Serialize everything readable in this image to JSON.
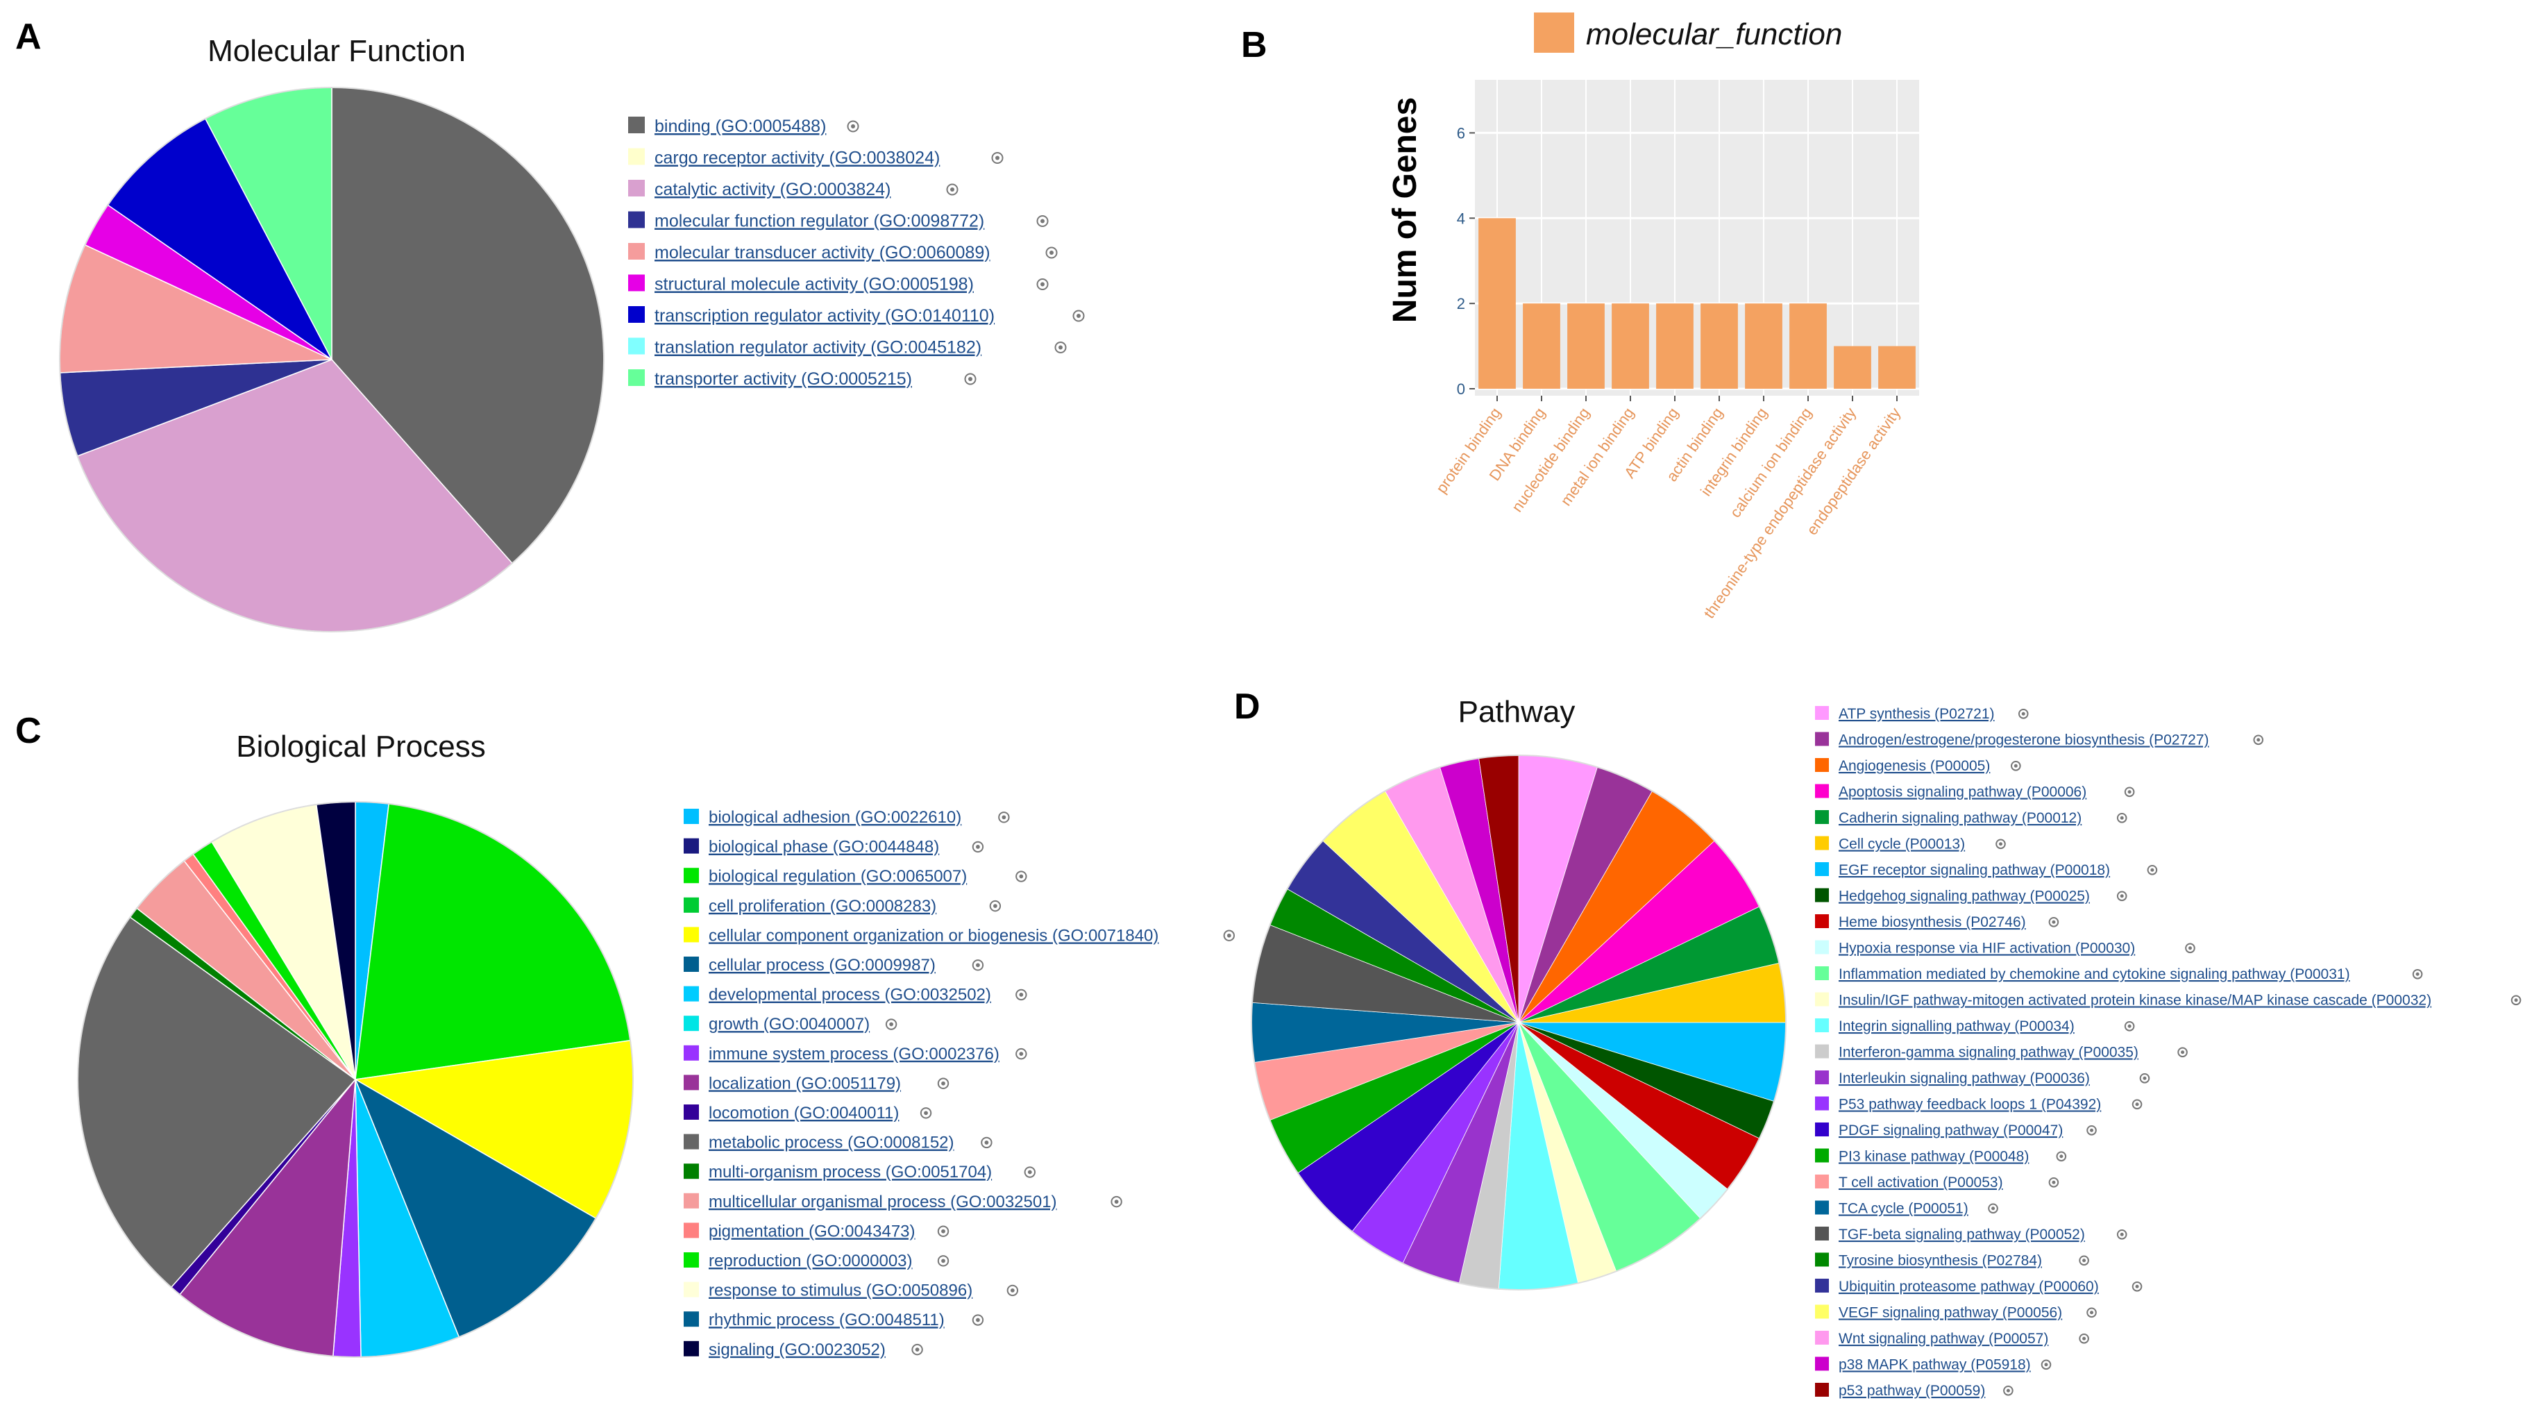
{
  "panels": {
    "a_letter": "A",
    "b_letter": "B",
    "c_letter": "C",
    "d_letter": "D"
  },
  "chart_data": [
    {
      "id": "A",
      "type": "pie",
      "title": "Molecular Function",
      "slices": [
        {
          "label": "binding (GO:0005488)",
          "value": 10,
          "color": "#666666"
        },
        {
          "label": "cargo receptor activity (GO:0038024)",
          "value": 0,
          "color": "#ffffcc"
        },
        {
          "label": "catalytic activity (GO:0003824)",
          "value": 8,
          "color": "#d9a0cf"
        },
        {
          "label": "molecular function regulator (GO:0098772)",
          "value": 1.3,
          "color": "#2e3192"
        },
        {
          "label": "molecular transducer activity (GO:0060089)",
          "value": 2,
          "color": "#f59c9c"
        },
        {
          "label": "structural molecule activity (GO:0005198)",
          "value": 0.7,
          "color": "#e600e6"
        },
        {
          "label": "transcription regulator activity (GO:0140110)",
          "value": 2,
          "color": "#0000cc"
        },
        {
          "label": "translation regulator activity (GO:0045182)",
          "value": 0,
          "color": "#80ffff"
        },
        {
          "label": "transporter activity (GO:0005215)",
          "value": 2,
          "color": "#66ff99"
        }
      ]
    },
    {
      "id": "B",
      "type": "bar",
      "legend": "molecular_function",
      "ylabel": "Num of Genes",
      "xlabel": "",
      "ylim": [
        0,
        7
      ],
      "yticks": [
        0,
        2,
        4,
        6
      ],
      "color": "#f4a261",
      "categories": [
        "protein binding",
        "DNA binding",
        "nucleotide binding",
        "metal ion binding",
        "ATP binding",
        "actin binding",
        "integrin binding",
        "calcium ion binding",
        "threonine-type endopeptidase activity",
        "endopeptidase activity"
      ],
      "values": [
        4,
        2,
        2,
        2,
        2,
        2,
        2,
        2,
        1,
        1
      ]
    },
    {
      "id": "C",
      "type": "pie",
      "title": "Biological Process",
      "slices": [
        {
          "label": "biological adhesion (GO:0022610)",
          "value": 0.6,
          "color": "#00bfff"
        },
        {
          "label": "biological phase (GO:0044848)",
          "value": 0,
          "color": "#1a1a80"
        },
        {
          "label": "biological regulation (GO:0065007)",
          "value": 6.5,
          "color": "#00e600"
        },
        {
          "label": "cell proliferation (GO:0008283)",
          "value": 0,
          "color": "#00cc33"
        },
        {
          "label": "cellular component organization or biogenesis (GO:0071840)",
          "value": 3.3,
          "color": "#ffff00"
        },
        {
          "label": "cellular process (GO:0009987)",
          "value": 3.3,
          "color": "#005f8f"
        },
        {
          "label": "developmental process (GO:0032502)",
          "value": 1.8,
          "color": "#00ccff"
        },
        {
          "label": "growth (GO:0040007)",
          "value": 0,
          "color": "#00e5e5"
        },
        {
          "label": "immune system process (GO:0002376)",
          "value": 0.5,
          "color": "#9933ff"
        },
        {
          "label": "localization (GO:0051179)",
          "value": 3,
          "color": "#993399"
        },
        {
          "label": "locomotion (GO:0040011)",
          "value": 0.2,
          "color": "#330099"
        },
        {
          "label": "metabolic process (GO:0008152)",
          "value": 7.3,
          "color": "#666666"
        },
        {
          "label": "multi-organism process (GO:0051704)",
          "value": 0.2,
          "color": "#008000"
        },
        {
          "label": "multicellular organismal process (GO:0032501)",
          "value": 1.2,
          "color": "#f59c9c"
        },
        {
          "label": "pigmentation (GO:0043473)",
          "value": 0.2,
          "color": "#ff8080"
        },
        {
          "label": "reproduction (GO:0000003)",
          "value": 0.4,
          "color": "#00e600"
        },
        {
          "label": "response to stimulus (GO:0050896)",
          "value": 2,
          "color": "#ffffd9"
        },
        {
          "label": "rhythmic process (GO:0048511)",
          "value": 0,
          "color": "#005f8f"
        },
        {
          "label": "signaling (GO:0023052)",
          "value": 0.7,
          "color": "#000040"
        }
      ]
    },
    {
      "id": "D",
      "type": "pie",
      "title": "Pathway",
      "slices": [
        {
          "label": "ATP synthesis (P02721)",
          "value": 4,
          "color": "#ff99ff"
        },
        {
          "label": "Androgen/estrogene/progesterone biosynthesis (P02727)",
          "value": 3,
          "color": "#993399"
        },
        {
          "label": "Angiogenesis (P00005)",
          "value": 4,
          "color": "#ff6600"
        },
        {
          "label": "Apoptosis signaling pathway (P00006)",
          "value": 4,
          "color": "#ff00cc"
        },
        {
          "label": "Cadherin signaling pathway (P00012)",
          "value": 3,
          "color": "#009933"
        },
        {
          "label": "Cell cycle (P00013)",
          "value": 3,
          "color": "#ffcc00"
        },
        {
          "label": "EGF receptor signaling pathway (P00018)",
          "value": 4,
          "color": "#00bfff"
        },
        {
          "label": "Hedgehog signaling pathway (P00025)",
          "value": 2,
          "color": "#005500"
        },
        {
          "label": "Heme biosynthesis (P02746)",
          "value": 3,
          "color": "#cc0000"
        },
        {
          "label": "Hypoxia response via HIF activation (P00030)",
          "value": 2,
          "color": "#ccffff"
        },
        {
          "label": "Inflammation mediated by chemokine and cytokine signaling pathway (P00031)",
          "value": 5,
          "color": "#66ff99"
        },
        {
          "label": "Insulin/IGF pathway-mitogen activated protein kinase kinase/MAP kinase cascade (P00032)",
          "value": 2,
          "color": "#ffffcc"
        },
        {
          "label": "Integrin signalling pathway (P00034)",
          "value": 4,
          "color": "#66ffff"
        },
        {
          "label": "Interferon-gamma signaling pathway (P00035)",
          "value": 2,
          "color": "#cccccc"
        },
        {
          "label": "Interleukin signaling pathway (P00036)",
          "value": 3,
          "color": "#9933cc"
        },
        {
          "label": "P53 pathway feedback loops 1 (P04392)",
          "value": 3,
          "color": "#9933ff"
        },
        {
          "label": "PDGF signaling pathway (P00047)",
          "value": 4,
          "color": "#3300cc"
        },
        {
          "label": "PI3 kinase pathway (P00048)",
          "value": 3,
          "color": "#00aa00"
        },
        {
          "label": "T cell activation (P00053)",
          "value": 3,
          "color": "#ff9999"
        },
        {
          "label": "TCA cycle (P00051)",
          "value": 3,
          "color": "#006699"
        },
        {
          "label": "TGF-beta signaling pathway (P00052)",
          "value": 4,
          "color": "#555555"
        },
        {
          "label": "Tyrosine biosynthesis (P02784)",
          "value": 2,
          "color": "#008800"
        },
        {
          "label": "Ubiquitin proteasome pathway (P00060)",
          "value": 3,
          "color": "#333399"
        },
        {
          "label": "VEGF signaling pathway (P00056)",
          "value": 4,
          "color": "#ffff66"
        },
        {
          "label": "Wnt signaling pathway (P00057)",
          "value": 3,
          "color": "#ff99ee"
        },
        {
          "label": "p38 MAPK pathway (P05918)",
          "value": 2,
          "color": "#cc00cc"
        },
        {
          "label": "p53 pathway (P00059)",
          "value": 2,
          "color": "#990000"
        }
      ]
    }
  ]
}
